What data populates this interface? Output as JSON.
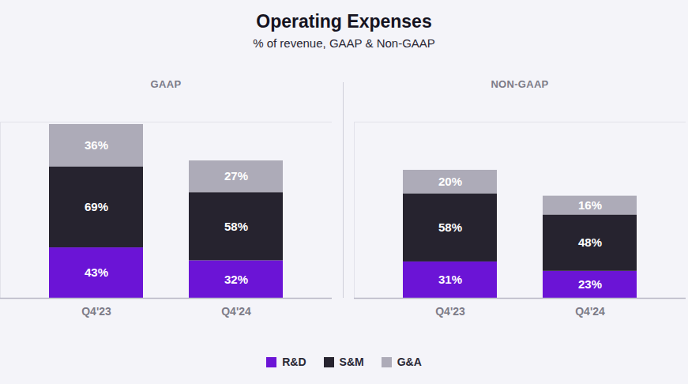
{
  "title": "Operating Expenses",
  "subtitle": "% of revenue, GAAP & Non-GAAP",
  "chart_data": [
    {
      "type": "bar",
      "title": "GAAP",
      "categories": [
        "Q4'23",
        "Q4'24"
      ],
      "series": [
        {
          "name": "R&D",
          "color": "#6b14d6",
          "values": [
            43,
            32
          ],
          "value_labels": [
            "43%",
            "32%"
          ]
        },
        {
          "name": "S&M",
          "color": "#26232f",
          "values": [
            69,
            58
          ],
          "value_labels": [
            "69%",
            "58%"
          ]
        },
        {
          "name": "G&A",
          "color": "#adabb8",
          "values": [
            36,
            27
          ],
          "value_labels": [
            "36%",
            "27%"
          ]
        }
      ],
      "stacked": true,
      "data_labels": true,
      "ylim": [
        0,
        150
      ],
      "tick_labels": "x",
      "grid": false,
      "legend": "bottom"
    },
    {
      "type": "bar",
      "title": "NON-GAAP",
      "categories": [
        "Q4'23",
        "Q4'24"
      ],
      "series": [
        {
          "name": "R&D",
          "color": "#6b14d6",
          "values": [
            31,
            23
          ],
          "value_labels": [
            "31%",
            "23%"
          ]
        },
        {
          "name": "S&M",
          "color": "#26232f",
          "values": [
            58,
            48
          ],
          "value_labels": [
            "58%",
            "48%"
          ]
        },
        {
          "name": "G&A",
          "color": "#adabb8",
          "values": [
            20,
            16
          ],
          "value_labels": [
            "20%",
            "16%"
          ]
        }
      ],
      "stacked": true,
      "data_labels": true,
      "ylim": [
        0,
        150
      ],
      "tick_labels": "x",
      "grid": false,
      "legend": "bottom"
    }
  ]
}
